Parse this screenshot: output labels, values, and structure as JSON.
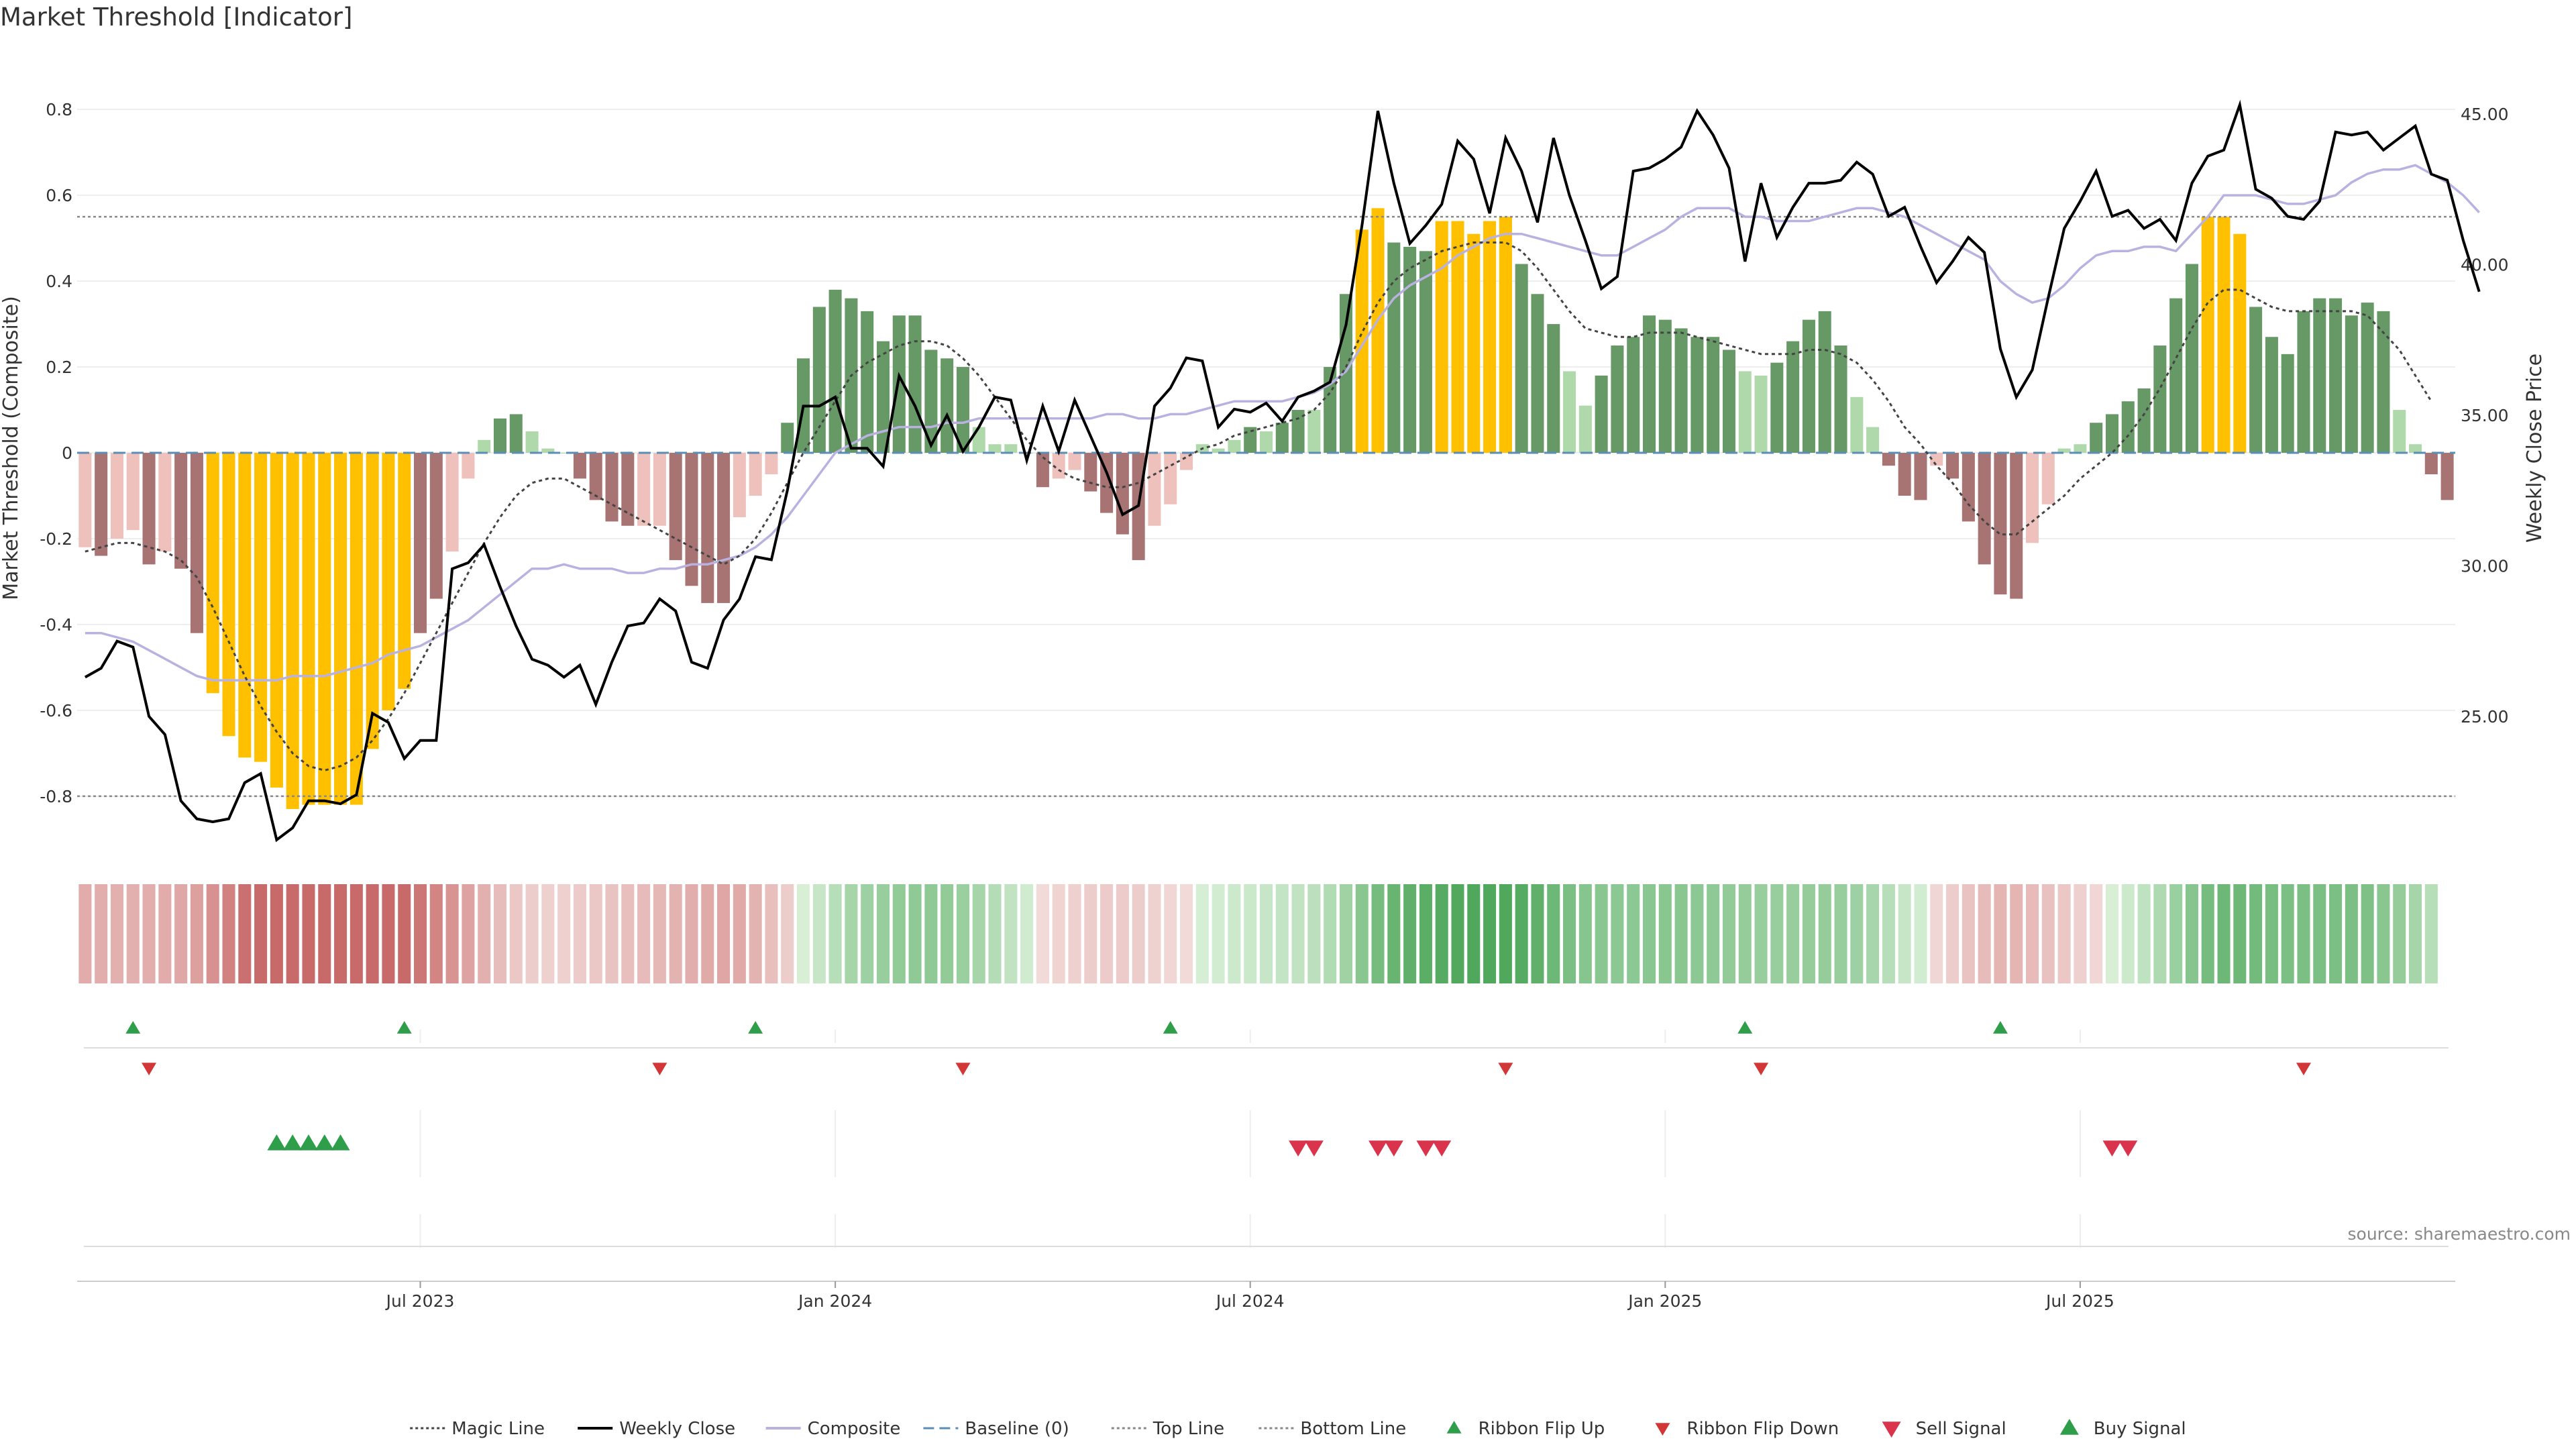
{
  "title": "Market Threshold [Indicator]",
  "source": "source: sharemaestro.com",
  "colors": {
    "strong_neg": "#a87373",
    "weak_neg": "#eec1bd",
    "strong_pos": "#669966",
    "weak_pos": "#b0d9ab",
    "extreme": "#ffc000",
    "close": "#000000",
    "composite": "#b9b2e0",
    "magic": "#444444",
    "baseline": "#5a8db8",
    "threshold_line": "#888888",
    "flip_up": "#2e9e4a",
    "flip_down": "#d23636",
    "sell": "#d9344c",
    "buy": "#2e9e4a"
  },
  "legend": [
    {
      "label": "Magic Line",
      "kind": "dotted",
      "color": "#444444"
    },
    {
      "label": "Weekly Close",
      "kind": "solid",
      "color": "#000000"
    },
    {
      "label": "Composite",
      "kind": "solid",
      "color": "#b9b2e0"
    },
    {
      "label": "Baseline (0)",
      "kind": "dashed",
      "color": "#5a8db8"
    },
    {
      "label": "Top Line",
      "kind": "dotted",
      "color": "#888888"
    },
    {
      "label": "Bottom Line",
      "kind": "dotted",
      "color": "#888888"
    },
    {
      "label": "Ribbon Flip Up",
      "kind": "up",
      "color": "#2e9e4a"
    },
    {
      "label": "Ribbon Flip Down",
      "kind": "down",
      "color": "#d23636"
    },
    {
      "label": "Sell Signal",
      "kind": "downbig",
      "color": "#d9344c"
    },
    {
      "label": "Buy Signal",
      "kind": "upbig",
      "color": "#2e9e4a"
    }
  ],
  "chart_data": {
    "type": "bar",
    "ylabel_left": "Market Threshold (Composite)",
    "ylabel_right": "Weekly Close Price",
    "ylim_left": [
      -0.93,
      0.93
    ],
    "ylim_right": [
      20.5,
      47.0
    ],
    "yticks_left": [
      "0.8",
      "0.6",
      "0.4",
      "0.2",
      "0",
      "-0.2",
      "-0.4",
      "-0.6",
      "-0.8"
    ],
    "yticks_right": [
      "45.00",
      "40.00",
      "35.00",
      "30.00",
      "25.00"
    ],
    "xticks": [
      {
        "label": "Jul 2023",
        "week": 21
      },
      {
        "label": "Jan 2024",
        "week": 47
      },
      {
        "label": "Jul 2024",
        "week": 73
      },
      {
        "label": "Jan 2025",
        "week": 99
      },
      {
        "label": "Jul 2025",
        "week": 125
      }
    ],
    "top_line": 0.55,
    "bottom_line": -0.8,
    "baseline": 0,
    "bars": [
      -0.22,
      -0.24,
      -0.2,
      -0.18,
      -0.26,
      -0.23,
      -0.27,
      -0.42,
      -0.56,
      -0.66,
      -0.71,
      -0.72,
      -0.78,
      -0.83,
      -0.82,
      -0.82,
      -0.82,
      -0.82,
      -0.69,
      -0.6,
      -0.55,
      -0.42,
      -0.34,
      -0.23,
      -0.06,
      0.03,
      0.08,
      0.09,
      0.05,
      0.01,
      0.0,
      -0.06,
      -0.11,
      -0.16,
      -0.17,
      -0.17,
      -0.17,
      -0.25,
      -0.31,
      -0.35,
      -0.35,
      -0.15,
      -0.1,
      -0.05,
      0.07,
      0.22,
      0.34,
      0.38,
      0.36,
      0.33,
      0.26,
      0.32,
      0.32,
      0.24,
      0.22,
      0.2,
      0.06,
      0.02,
      0.02,
      0.0,
      -0.08,
      -0.06,
      -0.04,
      -0.09,
      -0.14,
      -0.19,
      -0.25,
      -0.17,
      -0.12,
      -0.04,
      0.02,
      0.01,
      0.03,
      0.06,
      0.05,
      0.07,
      0.1,
      0.1,
      0.2,
      0.37,
      0.52,
      0.57,
      0.49,
      0.48,
      0.47,
      0.54,
      0.54,
      0.51,
      0.54,
      0.55,
      0.44,
      0.37,
      0.3,
      0.19,
      0.11,
      0.18,
      0.25,
      0.27,
      0.32,
      0.31,
      0.29,
      0.27,
      0.27,
      0.24,
      0.19,
      0.18,
      0.21,
      0.26,
      0.31,
      0.33,
      0.25,
      0.13,
      0.06,
      -0.03,
      -0.1,
      -0.11,
      -0.03,
      -0.06,
      -0.16,
      -0.26,
      -0.33,
      -0.34,
      -0.21,
      -0.12,
      0.01,
      0.02,
      0.07,
      0.09,
      0.12,
      0.15,
      0.25,
      0.36,
      0.44,
      0.55,
      0.55,
      0.51,
      0.34,
      0.27,
      0.23,
      0.33,
      0.36,
      0.36,
      0.32,
      0.35,
      0.33,
      0.1,
      0.02,
      -0.05,
      -0.11
    ],
    "close": [
      26.3,
      26.6,
      27.5,
      27.3,
      25.0,
      24.4,
      22.2,
      21.6,
      21.5,
      21.6,
      22.8,
      23.1,
      20.9,
      21.3,
      22.2,
      22.2,
      22.1,
      22.4,
      25.1,
      24.8,
      23.6,
      24.2,
      24.2,
      29.9,
      30.1,
      30.7,
      29.3,
      28.0,
      26.9,
      26.7,
      26.3,
      26.7,
      25.4,
      26.8,
      28.0,
      28.1,
      28.9,
      28.5,
      26.8,
      26.6,
      28.2,
      28.9,
      30.3,
      30.2,
      32.5,
      35.3,
      35.3,
      35.6,
      33.9,
      33.9,
      33.3,
      36.3,
      35.3,
      34.0,
      35.0,
      33.8,
      34.6,
      35.6,
      35.5,
      33.5,
      35.3,
      33.8,
      35.5,
      34.3,
      33.1,
      31.7,
      32.0,
      35.3,
      35.9,
      36.9,
      36.8,
      34.6,
      35.2,
      35.1,
      35.4,
      34.8,
      35.6,
      35.8,
      36.1,
      38.0,
      41.3,
      45.1,
      42.7,
      40.7,
      41.3,
      42.0,
      44.1,
      43.5,
      41.7,
      44.2,
      43.1,
      41.4,
      44.2,
      42.3,
      40.8,
      39.2,
      39.6,
      43.1,
      43.2,
      43.5,
      43.9,
      45.1,
      44.3,
      43.2,
      40.1,
      42.7,
      40.9,
      41.9,
      42.7,
      42.7,
      42.8,
      43.4,
      43.0,
      41.6,
      41.9,
      40.6,
      39.4,
      40.1,
      40.9,
      40.4,
      37.2,
      35.6,
      36.5,
      38.9,
      41.2,
      42.1,
      43.1,
      41.6,
      41.8,
      41.2,
      41.5,
      40.8,
      42.7,
      43.6,
      43.8,
      45.3,
      42.5,
      42.2,
      41.6,
      41.5,
      42.1,
      44.4,
      44.3,
      44.4,
      43.8,
      44.2,
      44.6,
      43.0,
      42.8,
      40.8,
      39.1
    ],
    "composite": [
      -0.42,
      -0.42,
      -0.43,
      -0.44,
      -0.46,
      -0.48,
      -0.5,
      -0.52,
      -0.53,
      -0.53,
      -0.53,
      -0.53,
      -0.53,
      -0.52,
      -0.52,
      -0.52,
      -0.51,
      -0.5,
      -0.49,
      -0.47,
      -0.46,
      -0.45,
      -0.43,
      -0.41,
      -0.39,
      -0.36,
      -0.33,
      -0.3,
      -0.27,
      -0.27,
      -0.26,
      -0.27,
      -0.27,
      -0.27,
      -0.28,
      -0.28,
      -0.27,
      -0.27,
      -0.26,
      -0.26,
      -0.25,
      -0.24,
      -0.22,
      -0.19,
      -0.15,
      -0.1,
      -0.05,
      0.0,
      0.02,
      0.04,
      0.05,
      0.06,
      0.06,
      0.06,
      0.07,
      0.07,
      0.08,
      0.08,
      0.08,
      0.08,
      0.08,
      0.08,
      0.08,
      0.08,
      0.09,
      0.09,
      0.08,
      0.08,
      0.09,
      0.09,
      0.1,
      0.11,
      0.12,
      0.12,
      0.12,
      0.12,
      0.13,
      0.14,
      0.16,
      0.19,
      0.25,
      0.31,
      0.36,
      0.39,
      0.41,
      0.43,
      0.46,
      0.48,
      0.5,
      0.51,
      0.51,
      0.5,
      0.49,
      0.48,
      0.47,
      0.46,
      0.46,
      0.48,
      0.5,
      0.52,
      0.55,
      0.57,
      0.57,
      0.57,
      0.55,
      0.55,
      0.54,
      0.54,
      0.54,
      0.55,
      0.56,
      0.57,
      0.57,
      0.56,
      0.55,
      0.53,
      0.51,
      0.49,
      0.47,
      0.45,
      0.4,
      0.37,
      0.35,
      0.36,
      0.39,
      0.43,
      0.46,
      0.47,
      0.47,
      0.48,
      0.48,
      0.47,
      0.51,
      0.55,
      0.6,
      0.6,
      0.6,
      0.59,
      0.58,
      0.58,
      0.59,
      0.6,
      0.63,
      0.65,
      0.66,
      0.66,
      0.67,
      0.65,
      0.63,
      0.6,
      0.56
    ],
    "magic": [
      -0.23,
      -0.22,
      -0.21,
      -0.21,
      -0.22,
      -0.23,
      -0.25,
      -0.29,
      -0.36,
      -0.44,
      -0.52,
      -0.59,
      -0.65,
      -0.7,
      -0.73,
      -0.74,
      -0.73,
      -0.71,
      -0.67,
      -0.62,
      -0.56,
      -0.49,
      -0.42,
      -0.35,
      -0.28,
      -0.21,
      -0.15,
      -0.1,
      -0.07,
      -0.06,
      -0.06,
      -0.08,
      -0.1,
      -0.12,
      -0.14,
      -0.16,
      -0.18,
      -0.2,
      -0.22,
      -0.24,
      -0.26,
      -0.24,
      -0.2,
      -0.14,
      -0.07,
      0.0,
      0.06,
      0.12,
      0.18,
      0.21,
      0.23,
      0.25,
      0.26,
      0.26,
      0.25,
      0.22,
      0.18,
      0.13,
      0.08,
      0.03,
      -0.01,
      -0.04,
      -0.06,
      -0.07,
      -0.08,
      -0.08,
      -0.07,
      -0.05,
      -0.03,
      -0.01,
      0.01,
      0.02,
      0.04,
      0.05,
      0.06,
      0.07,
      0.08,
      0.1,
      0.14,
      0.2,
      0.28,
      0.35,
      0.4,
      0.43,
      0.45,
      0.47,
      0.48,
      0.49,
      0.49,
      0.49,
      0.47,
      0.43,
      0.38,
      0.33,
      0.29,
      0.28,
      0.27,
      0.27,
      0.28,
      0.28,
      0.28,
      0.27,
      0.26,
      0.25,
      0.24,
      0.23,
      0.23,
      0.23,
      0.24,
      0.24,
      0.23,
      0.21,
      0.17,
      0.12,
      0.06,
      0.02,
      -0.03,
      -0.07,
      -0.12,
      -0.16,
      -0.19,
      -0.19,
      -0.16,
      -0.13,
      -0.1,
      -0.06,
      -0.03,
      0.0,
      0.04,
      0.09,
      0.15,
      0.22,
      0.29,
      0.35,
      0.38,
      0.38,
      0.36,
      0.34,
      0.33,
      0.33,
      0.33,
      0.33,
      0.33,
      0.32,
      0.28,
      0.24,
      0.18,
      0.12
    ],
    "ribbon_flip_up": [
      3,
      20,
      42,
      68,
      104,
      120
    ],
    "ribbon_flip_down": [
      4,
      36,
      55,
      89,
      105,
      139
    ],
    "sell_signals": [
      76,
      77,
      81,
      82,
      84,
      85,
      127,
      128
    ],
    "buy_signals": [
      12,
      13,
      14,
      15,
      16
    ]
  }
}
